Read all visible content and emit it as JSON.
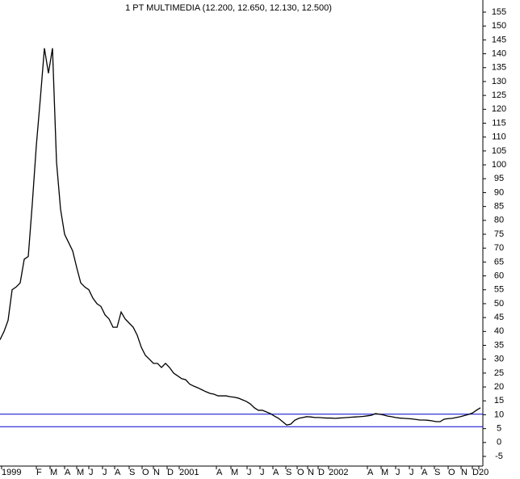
{
  "chart_data": {
    "type": "line",
    "title": "1 PT MULTIMEDIA (12.200, 12.650, 12.130, 12.500)",
    "x": [
      0,
      5,
      10,
      15,
      20,
      25,
      30,
      35,
      40,
      45,
      50,
      55,
      60,
      65,
      70,
      75,
      80,
      85,
      90,
      95,
      100,
      105,
      110,
      115,
      120,
      125,
      130,
      135,
      140,
      145,
      150,
      155,
      160,
      165,
      170,
      175,
      180,
      185,
      190,
      195,
      200,
      205,
      210,
      215,
      220,
      225,
      230,
      235,
      240,
      245,
      250,
      255,
      260,
      265,
      270,
      275,
      280,
      285,
      290,
      295,
      300,
      305,
      310,
      315,
      320,
      325,
      330,
      335,
      340,
      345,
      350,
      355,
      360,
      365,
      370,
      375,
      380,
      385,
      390,
      395,
      400,
      405,
      410,
      415,
      420,
      425,
      430,
      435,
      440,
      445,
      450,
      455,
      460,
      465,
      470,
      475,
      480,
      485,
      490,
      495,
      500,
      505,
      510,
      515,
      520,
      525,
      530,
      535,
      540,
      545,
      550,
      555,
      560,
      565,
      570,
      575,
      580,
      585,
      590,
      595
    ],
    "series": [
      {
        "color": "#000000",
        "values": [
          37,
          40,
          44,
          55,
          56,
          57.5,
          66,
          67,
          86,
          107,
          124,
          142,
          133,
          142,
          101,
          84,
          75,
          72,
          69,
          63,
          57.5,
          56,
          55,
          52,
          50,
          49,
          46,
          44.5,
          41.5,
          41.5,
          47,
          44.5,
          43,
          41.5,
          38.6,
          34.3,
          31.4,
          30,
          28.5,
          28.5,
          27,
          28.5,
          27,
          25,
          24,
          23,
          22.6,
          21,
          20.3,
          19.7,
          19,
          18.3,
          17.7,
          17.4,
          16.8,
          16.8,
          16.8,
          16.5,
          16.3,
          16,
          15.4,
          14.8,
          13.9,
          12.5,
          11.6,
          11.6,
          11,
          10.4,
          9.5,
          8.7,
          7.5,
          6.3,
          6.6,
          8,
          8.7,
          9,
          9.3,
          9.2,
          9,
          9,
          8.9,
          8.8,
          8.8,
          8.7,
          8.8,
          8.9,
          9,
          9.1,
          9.2,
          9.3,
          9.4,
          9.6,
          9.8,
          10.4,
          10.2,
          9.9,
          9.5,
          9.3,
          9,
          8.8,
          8.7,
          8.6,
          8.5,
          8.3,
          8.1,
          8.1,
          8,
          7.8,
          7.5,
          7.5,
          8.4,
          8.6,
          8.7,
          9,
          9.3,
          9.7,
          10.1,
          10.6,
          11.6,
          12.5
        ]
      }
    ],
    "hlines": [
      10.2,
      5.7
    ],
    "hline_color": "#0000cc",
    "xlim": [
      0,
      598
    ],
    "xticks": [
      {
        "value": 2,
        "label": "1999"
      },
      {
        "value": 45,
        "label": "F"
      },
      {
        "value": 62,
        "label": "M"
      },
      {
        "value": 80,
        "label": "A"
      },
      {
        "value": 95,
        "label": "M"
      },
      {
        "value": 110,
        "label": "J"
      },
      {
        "value": 127,
        "label": "J"
      },
      {
        "value": 142,
        "label": "A"
      },
      {
        "value": 160,
        "label": "S"
      },
      {
        "value": 176,
        "label": "O"
      },
      {
        "value": 190,
        "label": "N"
      },
      {
        "value": 207,
        "label": "D"
      },
      {
        "value": 222,
        "label": "2001"
      },
      {
        "value": 268,
        "label": "A"
      },
      {
        "value": 286,
        "label": "M"
      },
      {
        "value": 306,
        "label": "J"
      },
      {
        "value": 322,
        "label": "J"
      },
      {
        "value": 338,
        "label": "A"
      },
      {
        "value": 354,
        "label": "S"
      },
      {
        "value": 368,
        "label": "O"
      },
      {
        "value": 381,
        "label": "N"
      },
      {
        "value": 394,
        "label": "D"
      },
      {
        "value": 407,
        "label": "2002"
      },
      {
        "value": 455,
        "label": "A"
      },
      {
        "value": 472,
        "label": "M"
      },
      {
        "value": 490,
        "label": "J"
      },
      {
        "value": 507,
        "label": "J"
      },
      {
        "value": 522,
        "label": "A"
      },
      {
        "value": 538,
        "label": "S"
      },
      {
        "value": 555,
        "label": "O"
      },
      {
        "value": 571,
        "label": "N"
      },
      {
        "value": 585,
        "label": "D"
      },
      {
        "value": 593,
        "label": "20"
      }
    ],
    "ylim": [
      -5,
      155
    ],
    "yticks": [
      -5,
      0,
      5,
      10,
      15,
      20,
      25,
      30,
      35,
      40,
      45,
      50,
      55,
      60,
      65,
      70,
      75,
      80,
      85,
      90,
      95,
      100,
      105,
      110,
      115,
      120,
      125,
      130,
      135,
      140,
      145,
      150,
      155
    ]
  }
}
